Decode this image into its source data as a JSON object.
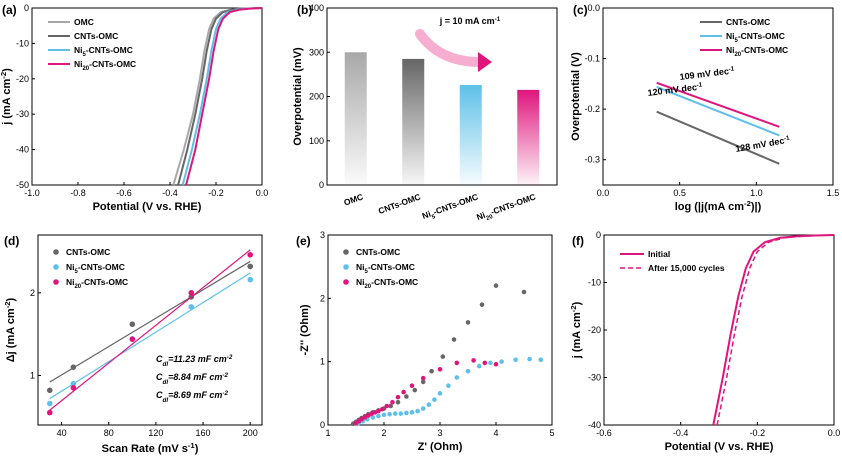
{
  "colors": {
    "gray": "#a8a8a8",
    "dark": "#666666",
    "blue": "#5ec0e8",
    "pink": "#e0157c"
  },
  "chart_data": [
    {
      "panel": "(a)",
      "type": "line",
      "xlabel": "Potential (V vs. RHE)",
      "ylabel": "j (mA cm-2)",
      "xlim": [
        -1.0,
        0.0
      ],
      "ylim": [
        -50,
        0
      ],
      "xticks": [
        "-1.0",
        "-0.8",
        "-0.6",
        "-0.4",
        "-0.2",
        "0.0"
      ],
      "yticks": [
        "0",
        "-10",
        "-20",
        "-30",
        "-40",
        "-50"
      ],
      "series": [
        {
          "name": "OMC",
          "legend": [
            "OMC"
          ],
          "color": "gray",
          "x": [
            -0.385,
            -0.34,
            -0.3,
            -0.27,
            -0.25,
            -0.23,
            -0.21,
            -0.18,
            -0.14,
            -0.1,
            0.0
          ],
          "y": [
            -50,
            -40,
            -30,
            -20,
            -12,
            -6,
            -3,
            -1.2,
            -0.5,
            -0.2,
            0
          ]
        },
        {
          "name": "CNTs-OMC",
          "legend": [
            "CNTs-OMC"
          ],
          "color": "dark",
          "x": [
            -0.365,
            -0.325,
            -0.29,
            -0.26,
            -0.24,
            -0.22,
            -0.2,
            -0.17,
            -0.13,
            -0.09,
            0.0
          ],
          "y": [
            -50,
            -40,
            -30,
            -20,
            -12,
            -6,
            -3,
            -1.2,
            -0.5,
            -0.2,
            0
          ]
        },
        {
          "name": "Ni5-CNTs-OMC",
          "legend": [
            "Ni",
            "5",
            "-CNTs-OMC"
          ],
          "color": "blue",
          "x": [
            -0.345,
            -0.305,
            -0.27,
            -0.24,
            -0.22,
            -0.2,
            -0.18,
            -0.15,
            -0.11,
            -0.07,
            0.0
          ],
          "y": [
            -50,
            -40,
            -30,
            -20,
            -12,
            -6,
            -3,
            -1.2,
            -0.5,
            -0.2,
            0
          ]
        },
        {
          "name": "Ni20-CNTs-OMC",
          "legend": [
            "Ni",
            "20",
            "-CNTs-OMC"
          ],
          "color": "pink",
          "x": [
            -0.33,
            -0.29,
            -0.26,
            -0.23,
            -0.21,
            -0.19,
            -0.17,
            -0.14,
            -0.1,
            -0.06,
            0.0
          ],
          "y": [
            -50,
            -40,
            -30,
            -20,
            -12,
            -6,
            -3,
            -1.2,
            -0.5,
            -0.2,
            0
          ]
        }
      ]
    },
    {
      "panel": "(b)",
      "type": "bar",
      "ylabel": "Overpotential (mV)",
      "ylim": [
        0,
        400
      ],
      "yticks": [
        "0",
        "100",
        "200",
        "300",
        "400"
      ],
      "annotation": "j = 10 mA cm",
      "annotation_sup": "-1",
      "categories": [
        [
          "OMC"
        ],
        [
          "CNTs-OMC"
        ],
        [
          "Ni",
          "5",
          "-CNTs-OMC"
        ],
        [
          "Ni",
          "20",
          "-CNTs-OMC"
        ]
      ],
      "values": [
        300,
        285,
        226,
        215
      ],
      "colors": [
        "gray",
        "dark",
        "blue",
        "pink"
      ]
    },
    {
      "panel": "(c)",
      "type": "line",
      "xlabel": "log (|j(mA cm-2)|)",
      "ylabel": "Overpotential (V)",
      "xlim": [
        0.0,
        1.5
      ],
      "ylim": [
        -0.35,
        0.0
      ],
      "xticks": [
        "0.0",
        "0.5",
        "1.0",
        "1.5"
      ],
      "yticks": [
        "0.0",
        "-0.1",
        "-0.2",
        "-0.3"
      ],
      "series": [
        {
          "name": "CNTs-OMC",
          "legend": [
            "CNTs-OMC"
          ],
          "color": "dark",
          "x": [
            0.35,
            1.15
          ],
          "y": [
            -0.205,
            -0.308
          ]
        },
        {
          "name": "Ni5-CNTs-OMC",
          "legend": [
            "Ni",
            "5",
            "-CNTs-OMC"
          ],
          "color": "blue",
          "x": [
            0.35,
            1.15
          ],
          "y": [
            -0.156,
            -0.252
          ]
        },
        {
          "name": "Ni20-CNTs-OMC",
          "legend": [
            "Ni",
            "20",
            "-CNTs-OMC"
          ],
          "color": "pink",
          "x": [
            0.35,
            1.15
          ],
          "y": [
            -0.148,
            -0.235
          ]
        }
      ],
      "slopes": [
        {
          "label": "109 mV dec",
          "sup": "-1",
          "color": "pink"
        },
        {
          "label": "120 mV dec",
          "sup": "-1",
          "color": "blue"
        },
        {
          "label": "128 mV dec",
          "sup": "-1",
          "color": "gray"
        }
      ]
    },
    {
      "panel": "(d)",
      "type": "scatter",
      "xlabel": "Scan Rate (mV s-1)",
      "ylabel": "Δj (mA cm-2)",
      "xlim": [
        20,
        210
      ],
      "ylim": [
        0.4,
        2.7
      ],
      "xticks": [
        "40",
        "80",
        "120",
        "160",
        "200"
      ],
      "yticks": [
        "1",
        "2"
      ],
      "series": [
        {
          "name": "CNTs-OMC",
          "legend": [
            "CNTs-OMC"
          ],
          "color": "dark",
          "x": [
            30,
            50,
            100,
            150,
            200
          ],
          "y": [
            0.82,
            1.1,
            1.62,
            1.95,
            2.32
          ],
          "fit": [
            [
              30,
              0.92
            ],
            [
              200,
              2.38
            ]
          ]
        },
        {
          "name": "Ni5-CNTs-OMC",
          "legend": [
            "Ni",
            "5",
            "-CNTs-OMC"
          ],
          "color": "blue",
          "x": [
            30,
            50,
            100,
            150,
            200
          ],
          "y": [
            0.66,
            0.9,
            1.44,
            1.83,
            2.16
          ],
          "fit": [
            [
              30,
              0.72
            ],
            [
              200,
              2.24
            ]
          ]
        },
        {
          "name": "Ni20-CNTs-OMC",
          "legend": [
            "Ni",
            "20",
            "-CNTs-OMC"
          ],
          "color": "pink",
          "x": [
            30,
            50,
            100,
            150,
            200
          ],
          "y": [
            0.55,
            0.85,
            1.44,
            2.0,
            2.46
          ],
          "fit": [
            [
              30,
              0.58
            ],
            [
              200,
              2.52
            ]
          ]
        }
      ],
      "annotations": [
        {
          "sym": "C",
          "sub": "dl",
          "text": "=11.23 mF cm",
          "sup": "-2",
          "color": "pink"
        },
        {
          "sym": "C",
          "sub": "dl",
          "text": "=8.84 mF cm",
          "sup": "-2",
          "color": "blue"
        },
        {
          "sym": "C",
          "sub": "dl",
          "text": "=8.69 mF cm",
          "sup": "-2",
          "color": "dark"
        }
      ]
    },
    {
      "panel": "(e)",
      "type": "scatter",
      "xlabel": "Z' (Ohm)",
      "ylabel": "-Z'' (Ohm)",
      "xlim": [
        1,
        5
      ],
      "ylim": [
        0,
        3
      ],
      "xticks": [
        "1",
        "2",
        "3",
        "4",
        "5"
      ],
      "yticks": [
        "0",
        "1",
        "2",
        "3"
      ],
      "series": [
        {
          "name": "CNTs-OMC",
          "legend": [
            "CNTs-OMC"
          ],
          "color": "dark",
          "x": [
            1.45,
            1.5,
            1.55,
            1.6,
            1.66,
            1.72,
            1.8,
            1.9,
            2.0,
            2.12,
            2.25,
            2.4,
            2.55,
            2.7,
            2.85,
            3.05,
            3.25,
            3.5,
            3.75,
            4.0,
            4.5
          ],
          "y": [
            0.02,
            0.05,
            0.08,
            0.11,
            0.14,
            0.17,
            0.2,
            0.23,
            0.26,
            0.3,
            0.36,
            0.45,
            0.55,
            0.68,
            0.85,
            1.08,
            1.35,
            1.62,
            1.9,
            2.2,
            2.1
          ]
        },
        {
          "name": "Ni5-CNTs-OMC",
          "legend": [
            "Ni",
            "5",
            "-CNTs-OMC"
          ],
          "color": "blue",
          "x": [
            1.55,
            1.62,
            1.7,
            1.8,
            1.9,
            2.0,
            2.1,
            2.2,
            2.3,
            2.4,
            2.5,
            2.6,
            2.7,
            2.8,
            2.9,
            3.0,
            3.15,
            3.3,
            3.5,
            3.7,
            3.9,
            4.1,
            4.35,
            4.6,
            4.8
          ],
          "y": [
            0.03,
            0.06,
            0.09,
            0.12,
            0.14,
            0.16,
            0.17,
            0.18,
            0.18,
            0.19,
            0.2,
            0.22,
            0.26,
            0.32,
            0.4,
            0.5,
            0.62,
            0.75,
            0.85,
            0.93,
            0.98,
            1.0,
            1.03,
            1.04,
            1.03
          ]
        },
        {
          "name": "Ni20-CNTs-OMC",
          "legend": [
            "Ni",
            "20",
            "-CNTs-OMC"
          ],
          "color": "pink",
          "x": [
            1.5,
            1.55,
            1.6,
            1.66,
            1.72,
            1.78,
            1.84,
            1.9,
            1.97,
            2.05,
            2.15,
            2.25,
            2.35,
            2.5,
            2.7,
            3.0,
            3.3,
            3.6,
            3.8,
            4.0
          ],
          "y": [
            0.03,
            0.06,
            0.09,
            0.12,
            0.15,
            0.18,
            0.2,
            0.22,
            0.25,
            0.3,
            0.36,
            0.44,
            0.52,
            0.62,
            0.74,
            0.88,
            0.98,
            1.02,
            0.98,
            0.96
          ]
        }
      ]
    },
    {
      "panel": "(f)",
      "type": "line",
      "xlabel": "Potential (V vs. RHE)",
      "ylabel": "j (mA cm-2)",
      "xlim": [
        -0.6,
        0.0
      ],
      "ylim": [
        -40,
        0
      ],
      "xticks": [
        "-0.6",
        "-0.4",
        "-0.2",
        "0.0"
      ],
      "yticks": [
        "0",
        "-10",
        "-20",
        "-30",
        "-40"
      ],
      "series": [
        {
          "name": "Initial",
          "legend": [
            "Initial"
          ],
          "color": "pink",
          "dash": false,
          "x": [
            -0.315,
            -0.29,
            -0.27,
            -0.25,
            -0.23,
            -0.21,
            -0.18,
            -0.14,
            -0.1,
            -0.05,
            0.0
          ],
          "y": [
            -40,
            -30,
            -21,
            -13,
            -7,
            -3.5,
            -1.5,
            -0.6,
            -0.3,
            -0.1,
            0
          ]
        },
        {
          "name": "After 15,000 cycles",
          "legend": [
            "After 15,000 cycles"
          ],
          "color": "pink",
          "dash": true,
          "x": [
            -0.305,
            -0.28,
            -0.26,
            -0.24,
            -0.22,
            -0.2,
            -0.17,
            -0.13,
            -0.09,
            -0.04,
            0.0
          ],
          "y": [
            -40,
            -30,
            -21,
            -13,
            -7,
            -3.5,
            -1.5,
            -0.6,
            -0.3,
            -0.1,
            0
          ]
        }
      ]
    }
  ]
}
